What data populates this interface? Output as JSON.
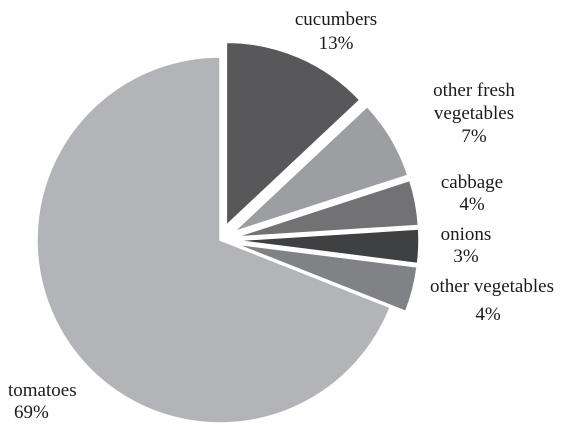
{
  "chart_data": {
    "type": "pie",
    "title": "",
    "slices": [
      {
        "label": "cucumbers",
        "value": 13,
        "value_label": "13%",
        "color": "#58585a",
        "exploded": true
      },
      {
        "label": "other fresh vegetables",
        "label_lines": [
          "other fresh",
          "vegetables"
        ],
        "value": 7,
        "value_label": "7%",
        "color": "#9d9ea1",
        "exploded": true
      },
      {
        "label": "cabbage",
        "value": 4,
        "value_label": "4%",
        "color": "#727275",
        "exploded": true
      },
      {
        "label": "onions",
        "value": 3,
        "value_label": "3%",
        "color": "#3f4041",
        "exploded": true
      },
      {
        "label": "other vegetables",
        "value": 4,
        "value_label": "4%",
        "color": "#818285",
        "exploded": true
      },
      {
        "label": "tomatoes",
        "value": 69,
        "value_label": "69%",
        "color": "#b3b4b7",
        "exploded": false
      }
    ],
    "start": "12 o'clock",
    "direction": "clockwise",
    "legend": "none"
  }
}
